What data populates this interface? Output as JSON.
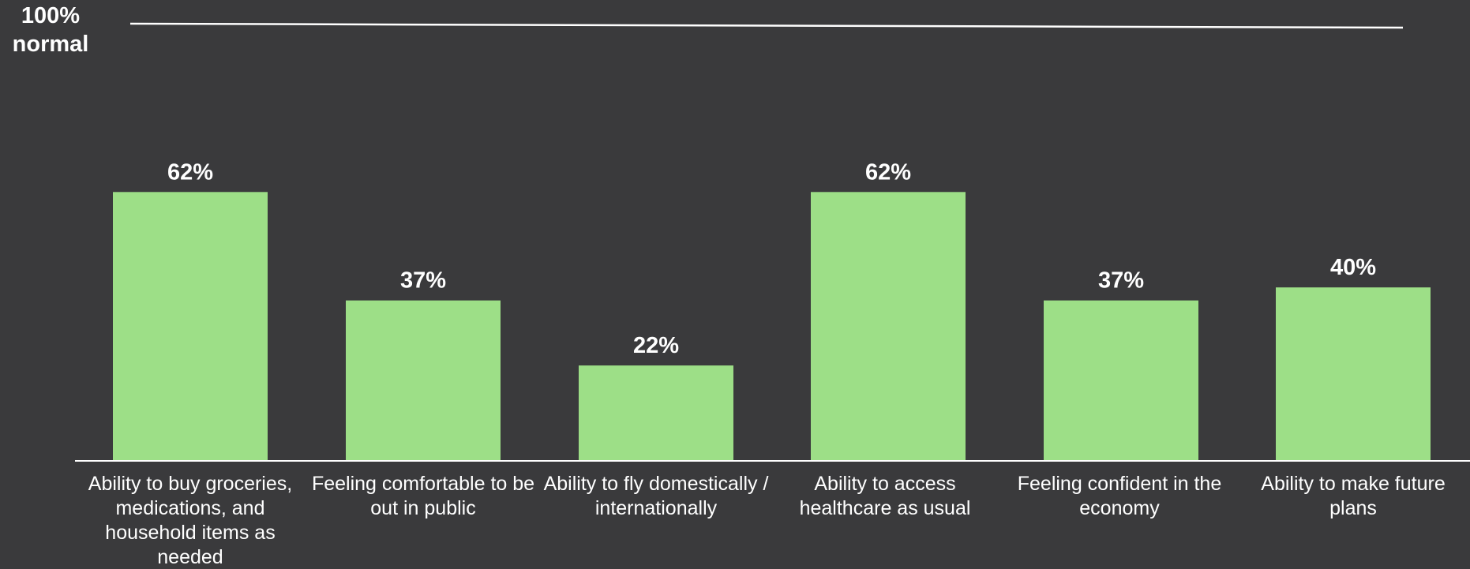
{
  "chart_data": {
    "type": "bar",
    "categories": [
      "Ability to buy groceries, medications, and household items as needed",
      "Feeling comfortable to be out in public",
      "Ability to fly domestically / internationally",
      "Ability to access healthcare as usual",
      "Feeling confident in the economy",
      "Ability to make future plans"
    ],
    "values": [
      62,
      37,
      22,
      62,
      37,
      40
    ],
    "value_labels": [
      "62%",
      "37%",
      "22%",
      "62%",
      "37%",
      "40%"
    ],
    "ylim": [
      0,
      100
    ],
    "reference_line": {
      "value": 100,
      "label_line1": "100%",
      "label_line2": "normal"
    },
    "grid": false,
    "bar_color": "#9ddf87",
    "background_color": "#3a3a3c",
    "text_color": "#ffffff"
  }
}
